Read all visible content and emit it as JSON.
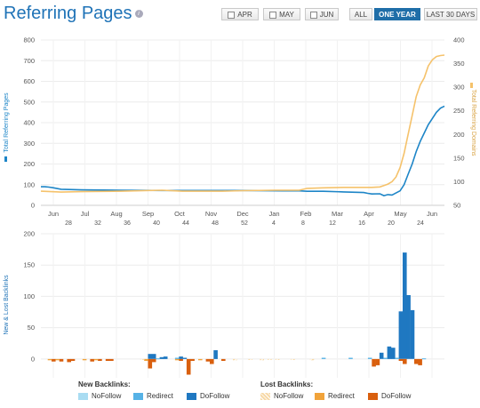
{
  "header": {
    "title": "Referring Pages"
  },
  "toolbar": {
    "month_buttons": [
      {
        "label": "APR"
      },
      {
        "label": "MAY"
      },
      {
        "label": "JUN"
      }
    ],
    "range_buttons": [
      {
        "label": "ALL",
        "active": false
      },
      {
        "label": "ONE YEAR",
        "active": true
      },
      {
        "label": "LAST 30 DAYS",
        "active": false
      }
    ]
  },
  "colors": {
    "pages": "#1d85c7",
    "domains": "#f5c26b",
    "new_nofollow": "#a9dcf2",
    "new_redirect": "#56b2e6",
    "new_dofollow": "#1f78c1",
    "lost_nofollow": "#f7d9a8",
    "lost_redirect": "#f1a33a",
    "lost_dofollow": "#d95f0e"
  },
  "chart_data": [
    {
      "type": "line",
      "ylabel": "Total Referring Pages",
      "y2label": "Total Referring Domains",
      "ylim": [
        0,
        800
      ],
      "y2lim": [
        50,
        400
      ],
      "yticks": [
        "0",
        "100",
        "200",
        "300",
        "400",
        "500",
        "600",
        "700",
        "800"
      ],
      "y2ticks": [
        "50",
        "100",
        "150",
        "200",
        "250",
        "300",
        "350",
        "400"
      ],
      "month_labels": [
        "Jun",
        "Jul",
        "Aug",
        "Sep",
        "Oct",
        "Nov",
        "Dec",
        "Jan",
        "Feb",
        "Mar",
        "Apr",
        "May",
        "Jun"
      ],
      "week_labels": [
        "28",
        "32",
        "36",
        "40",
        "44",
        "48",
        "52",
        "4",
        "8",
        "12",
        "16",
        "20",
        "24"
      ],
      "grid": true,
      "series": [
        {
          "name": "Total Referring Pages",
          "axis": "left",
          "x": [
            0,
            1,
            2,
            3,
            5,
            10,
            20,
            30,
            40,
            50,
            60,
            64,
            66,
            70,
            75,
            80,
            81,
            82,
            84,
            85,
            86,
            87,
            88,
            89,
            90,
            91,
            92,
            93,
            94,
            95,
            96,
            97,
            98,
            99,
            100
          ],
          "values": [
            90,
            90,
            88,
            85,
            78,
            75,
            73,
            72,
            72,
            72,
            70,
            70,
            68,
            68,
            65,
            62,
            58,
            55,
            56,
            47,
            52,
            50,
            60,
            70,
            100,
            150,
            200,
            260,
            310,
            350,
            390,
            420,
            450,
            470,
            480
          ]
        },
        {
          "name": "Total Referring Domains",
          "axis": "right",
          "x": [
            0,
            5,
            10,
            20,
            30,
            35,
            40,
            45,
            50,
            58,
            64,
            66,
            70,
            75,
            80,
            82,
            84,
            85,
            86,
            87,
            88,
            89,
            90,
            91,
            92,
            93,
            94,
            95,
            96,
            97,
            98,
            99,
            100
          ],
          "values": [
            80,
            78,
            79,
            80,
            82,
            80,
            80,
            80,
            81,
            82,
            82,
            86,
            87,
            88,
            88,
            88,
            89,
            92,
            95,
            100,
            110,
            130,
            160,
            200,
            240,
            280,
            305,
            320,
            345,
            358,
            365,
            367,
            368
          ]
        }
      ]
    },
    {
      "type": "bar",
      "ylabel": "New & Lost Backlinks",
      "ylim": [
        -30,
        200
      ],
      "yticks": [
        "0",
        "50",
        "100",
        "150",
        "200"
      ],
      "grid": true,
      "series": [
        {
          "name": "DoFollow",
          "group": "New Backlinks",
          "x": [
            26,
            27,
            29,
            30,
            34,
            35,
            43,
            86,
            88,
            89,
            91,
            92,
            93,
            94,
            95,
            96
          ],
          "values": [
            8,
            8,
            3,
            4,
            4,
            2,
            14,
            10,
            20,
            18,
            76,
            170,
            102,
            78,
            0,
            0
          ]
        },
        {
          "name": "Redirect",
          "group": "New Backlinks",
          "x": [
            28,
            33,
            71,
            78,
            83,
            87,
            90,
            97
          ],
          "values": [
            1,
            2,
            2,
            2,
            2,
            2,
            2,
            1
          ]
        },
        {
          "name": "DoFollow",
          "group": "Lost Backlinks",
          "x": [
            1,
            3,
            5,
            6,
            11,
            13,
            15,
            16,
            26,
            27,
            34,
            36,
            37,
            41,
            42,
            45,
            84,
            85,
            91,
            92,
            95,
            96
          ],
          "values": [
            -4,
            -4,
            -5,
            -3,
            -4,
            -3,
            -3,
            -3,
            -15,
            -5,
            -3,
            -25,
            -3,
            -4,
            -8,
            -3,
            -12,
            -10,
            -3,
            -8,
            -8,
            -10
          ]
        },
        {
          "name": "Redirect",
          "group": "Lost Backlinks",
          "x": [
            0,
            2,
            9,
            12,
            25,
            33,
            39
          ],
          "values": [
            -2,
            -2,
            -2,
            -2,
            -3,
            -2,
            -2
          ]
        },
        {
          "name": "NoFollow",
          "group": "Lost Backlinks",
          "x": [
            24,
            48,
            52,
            55,
            57,
            59,
            63,
            68
          ],
          "values": [
            -1,
            -2,
            -1,
            -2,
            -1,
            -1,
            -1,
            -2
          ]
        }
      ]
    }
  ],
  "legend": {
    "new_title": "New Backlinks:",
    "lost_title": "Lost Backlinks:",
    "new_items": [
      {
        "label": "NoFollow"
      },
      {
        "label": "Redirect"
      },
      {
        "label": "DoFollow"
      }
    ],
    "lost_items": [
      {
        "label": "NoFollow"
      },
      {
        "label": "Redirect"
      },
      {
        "label": "DoFollow"
      }
    ]
  }
}
